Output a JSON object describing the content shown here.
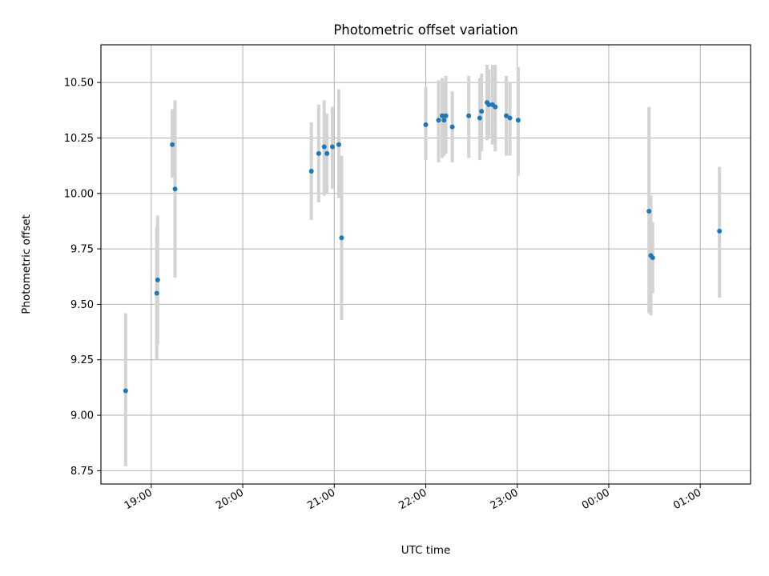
{
  "chart_data": {
    "type": "scatter",
    "title": "Photometric offset variation",
    "xlabel": "UTC time",
    "ylabel": "Photometric offset",
    "grid": true,
    "xlim_hours": [
      18.45,
      25.55
    ],
    "ylim": [
      8.69,
      10.67
    ],
    "x_ticks": [
      {
        "label": "19:00",
        "value": 19
      },
      {
        "label": "20:00",
        "value": 20
      },
      {
        "label": "21:00",
        "value": 21
      },
      {
        "label": "22:00",
        "value": 22
      },
      {
        "label": "23:00",
        "value": 23
      },
      {
        "label": "00:00",
        "value": 24
      },
      {
        "label": "01:00",
        "value": 25
      }
    ],
    "y_ticks": [
      {
        "label": "8.75",
        "value": 8.75
      },
      {
        "label": "9.00",
        "value": 9.0
      },
      {
        "label": "9.25",
        "value": 9.25
      },
      {
        "label": "9.50",
        "value": 9.5
      },
      {
        "label": "9.75",
        "value": 9.75
      },
      {
        "label": "10.00",
        "value": 10.0
      },
      {
        "label": "10.25",
        "value": 10.25
      },
      {
        "label": "10.50",
        "value": 10.5
      }
    ],
    "marker_color": "#1f77b4",
    "errorbar_color": "#d3d3d3",
    "points": [
      {
        "t": 18.72,
        "y": 9.11,
        "lo": 8.77,
        "hi": 9.46
      },
      {
        "t": 19.06,
        "y": 9.55,
        "lo": 9.25,
        "hi": 9.85
      },
      {
        "t": 19.07,
        "y": 9.61,
        "lo": 9.32,
        "hi": 9.9
      },
      {
        "t": 19.23,
        "y": 10.22,
        "lo": 10.07,
        "hi": 10.38
      },
      {
        "t": 19.26,
        "y": 10.02,
        "lo": 9.62,
        "hi": 10.42
      },
      {
        "t": 20.75,
        "y": 10.1,
        "lo": 9.88,
        "hi": 10.32
      },
      {
        "t": 20.83,
        "y": 10.18,
        "lo": 9.96,
        "hi": 10.4
      },
      {
        "t": 20.89,
        "y": 10.21,
        "lo": 9.99,
        "hi": 10.42
      },
      {
        "t": 20.92,
        "y": 10.18,
        "lo": 10.0,
        "hi": 10.36
      },
      {
        "t": 20.98,
        "y": 10.21,
        "lo": 10.02,
        "hi": 10.39
      },
      {
        "t": 21.05,
        "y": 10.22,
        "lo": 9.98,
        "hi": 10.47
      },
      {
        "t": 21.08,
        "y": 9.8,
        "lo": 9.43,
        "hi": 10.17
      },
      {
        "t": 22.0,
        "y": 10.31,
        "lo": 10.15,
        "hi": 10.48
      },
      {
        "t": 22.14,
        "y": 10.33,
        "lo": 10.14,
        "hi": 10.51
      },
      {
        "t": 22.18,
        "y": 10.35,
        "lo": 10.16,
        "hi": 10.52
      },
      {
        "t": 22.2,
        "y": 10.33,
        "lo": 10.17,
        "hi": 10.5
      },
      {
        "t": 22.22,
        "y": 10.35,
        "lo": 10.18,
        "hi": 10.53
      },
      {
        "t": 22.29,
        "y": 10.3,
        "lo": 10.14,
        "hi": 10.46
      },
      {
        "t": 22.47,
        "y": 10.35,
        "lo": 10.16,
        "hi": 10.53
      },
      {
        "t": 22.59,
        "y": 10.34,
        "lo": 10.15,
        "hi": 10.52
      },
      {
        "t": 22.61,
        "y": 10.37,
        "lo": 10.19,
        "hi": 10.54
      },
      {
        "t": 22.67,
        "y": 10.41,
        "lo": 10.24,
        "hi": 10.58
      },
      {
        "t": 22.69,
        "y": 10.4,
        "lo": 10.25,
        "hi": 10.56
      },
      {
        "t": 22.73,
        "y": 10.4,
        "lo": 10.22,
        "hi": 10.58
      },
      {
        "t": 22.76,
        "y": 10.39,
        "lo": 10.19,
        "hi": 10.58
      },
      {
        "t": 22.88,
        "y": 10.35,
        "lo": 10.17,
        "hi": 10.53
      },
      {
        "t": 22.92,
        "y": 10.34,
        "lo": 10.17,
        "hi": 10.5
      },
      {
        "t": 23.01,
        "y": 10.33,
        "lo": 10.08,
        "hi": 10.57
      },
      {
        "t": 24.44,
        "y": 9.92,
        "lo": 9.46,
        "hi": 10.39
      },
      {
        "t": 24.46,
        "y": 9.72,
        "lo": 9.45,
        "hi": 9.99
      },
      {
        "t": 24.48,
        "y": 9.71,
        "lo": 9.55,
        "hi": 9.87
      },
      {
        "t": 25.21,
        "y": 9.83,
        "lo": 9.53,
        "hi": 10.12
      }
    ]
  }
}
